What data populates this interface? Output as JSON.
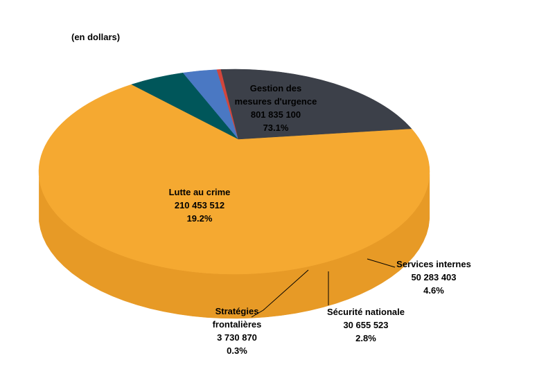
{
  "chart_data": {
    "type": "pie",
    "unit_label": "(en dollars)",
    "slices": [
      {
        "name": "Gestion des mesures d'urgence",
        "label_lines": [
          "Gestion des",
          "mesures d'urgence"
        ],
        "value": 801835100,
        "value_text": "801 835 100",
        "percent_text": "73.1%",
        "color": "#F5A931",
        "side_color": "#E79A26"
      },
      {
        "name": "Services internes",
        "label_lines": [
          "Services internes"
        ],
        "value": 50283403,
        "value_text": "50 283 403",
        "percent_text": "4.6%",
        "color": "#00565A",
        "side_color": "#002F31"
      },
      {
        "name": "Sécurité nationale",
        "label_lines": [
          "Sécurité nationale"
        ],
        "value": 30655523,
        "value_text": "30 655 523",
        "percent_text": "2.8%",
        "color": "#4A78C3",
        "side_color": "#1E3257"
      },
      {
        "name": "Stratégies frontalières",
        "label_lines": [
          "Stratégies",
          "frontalières"
        ],
        "value": 3730870,
        "value_text": "3 730 870",
        "percent_text": "0.3%",
        "color": "#D2463C",
        "side_color": "#8E2A24"
      },
      {
        "name": "Lutte au crime",
        "label_lines": [
          "Lutte au crime"
        ],
        "value": 210453512,
        "value_text": "210 453 512",
        "percent_text": "19.2%",
        "color": "#3C4049",
        "side_color": "#252830"
      }
    ]
  }
}
